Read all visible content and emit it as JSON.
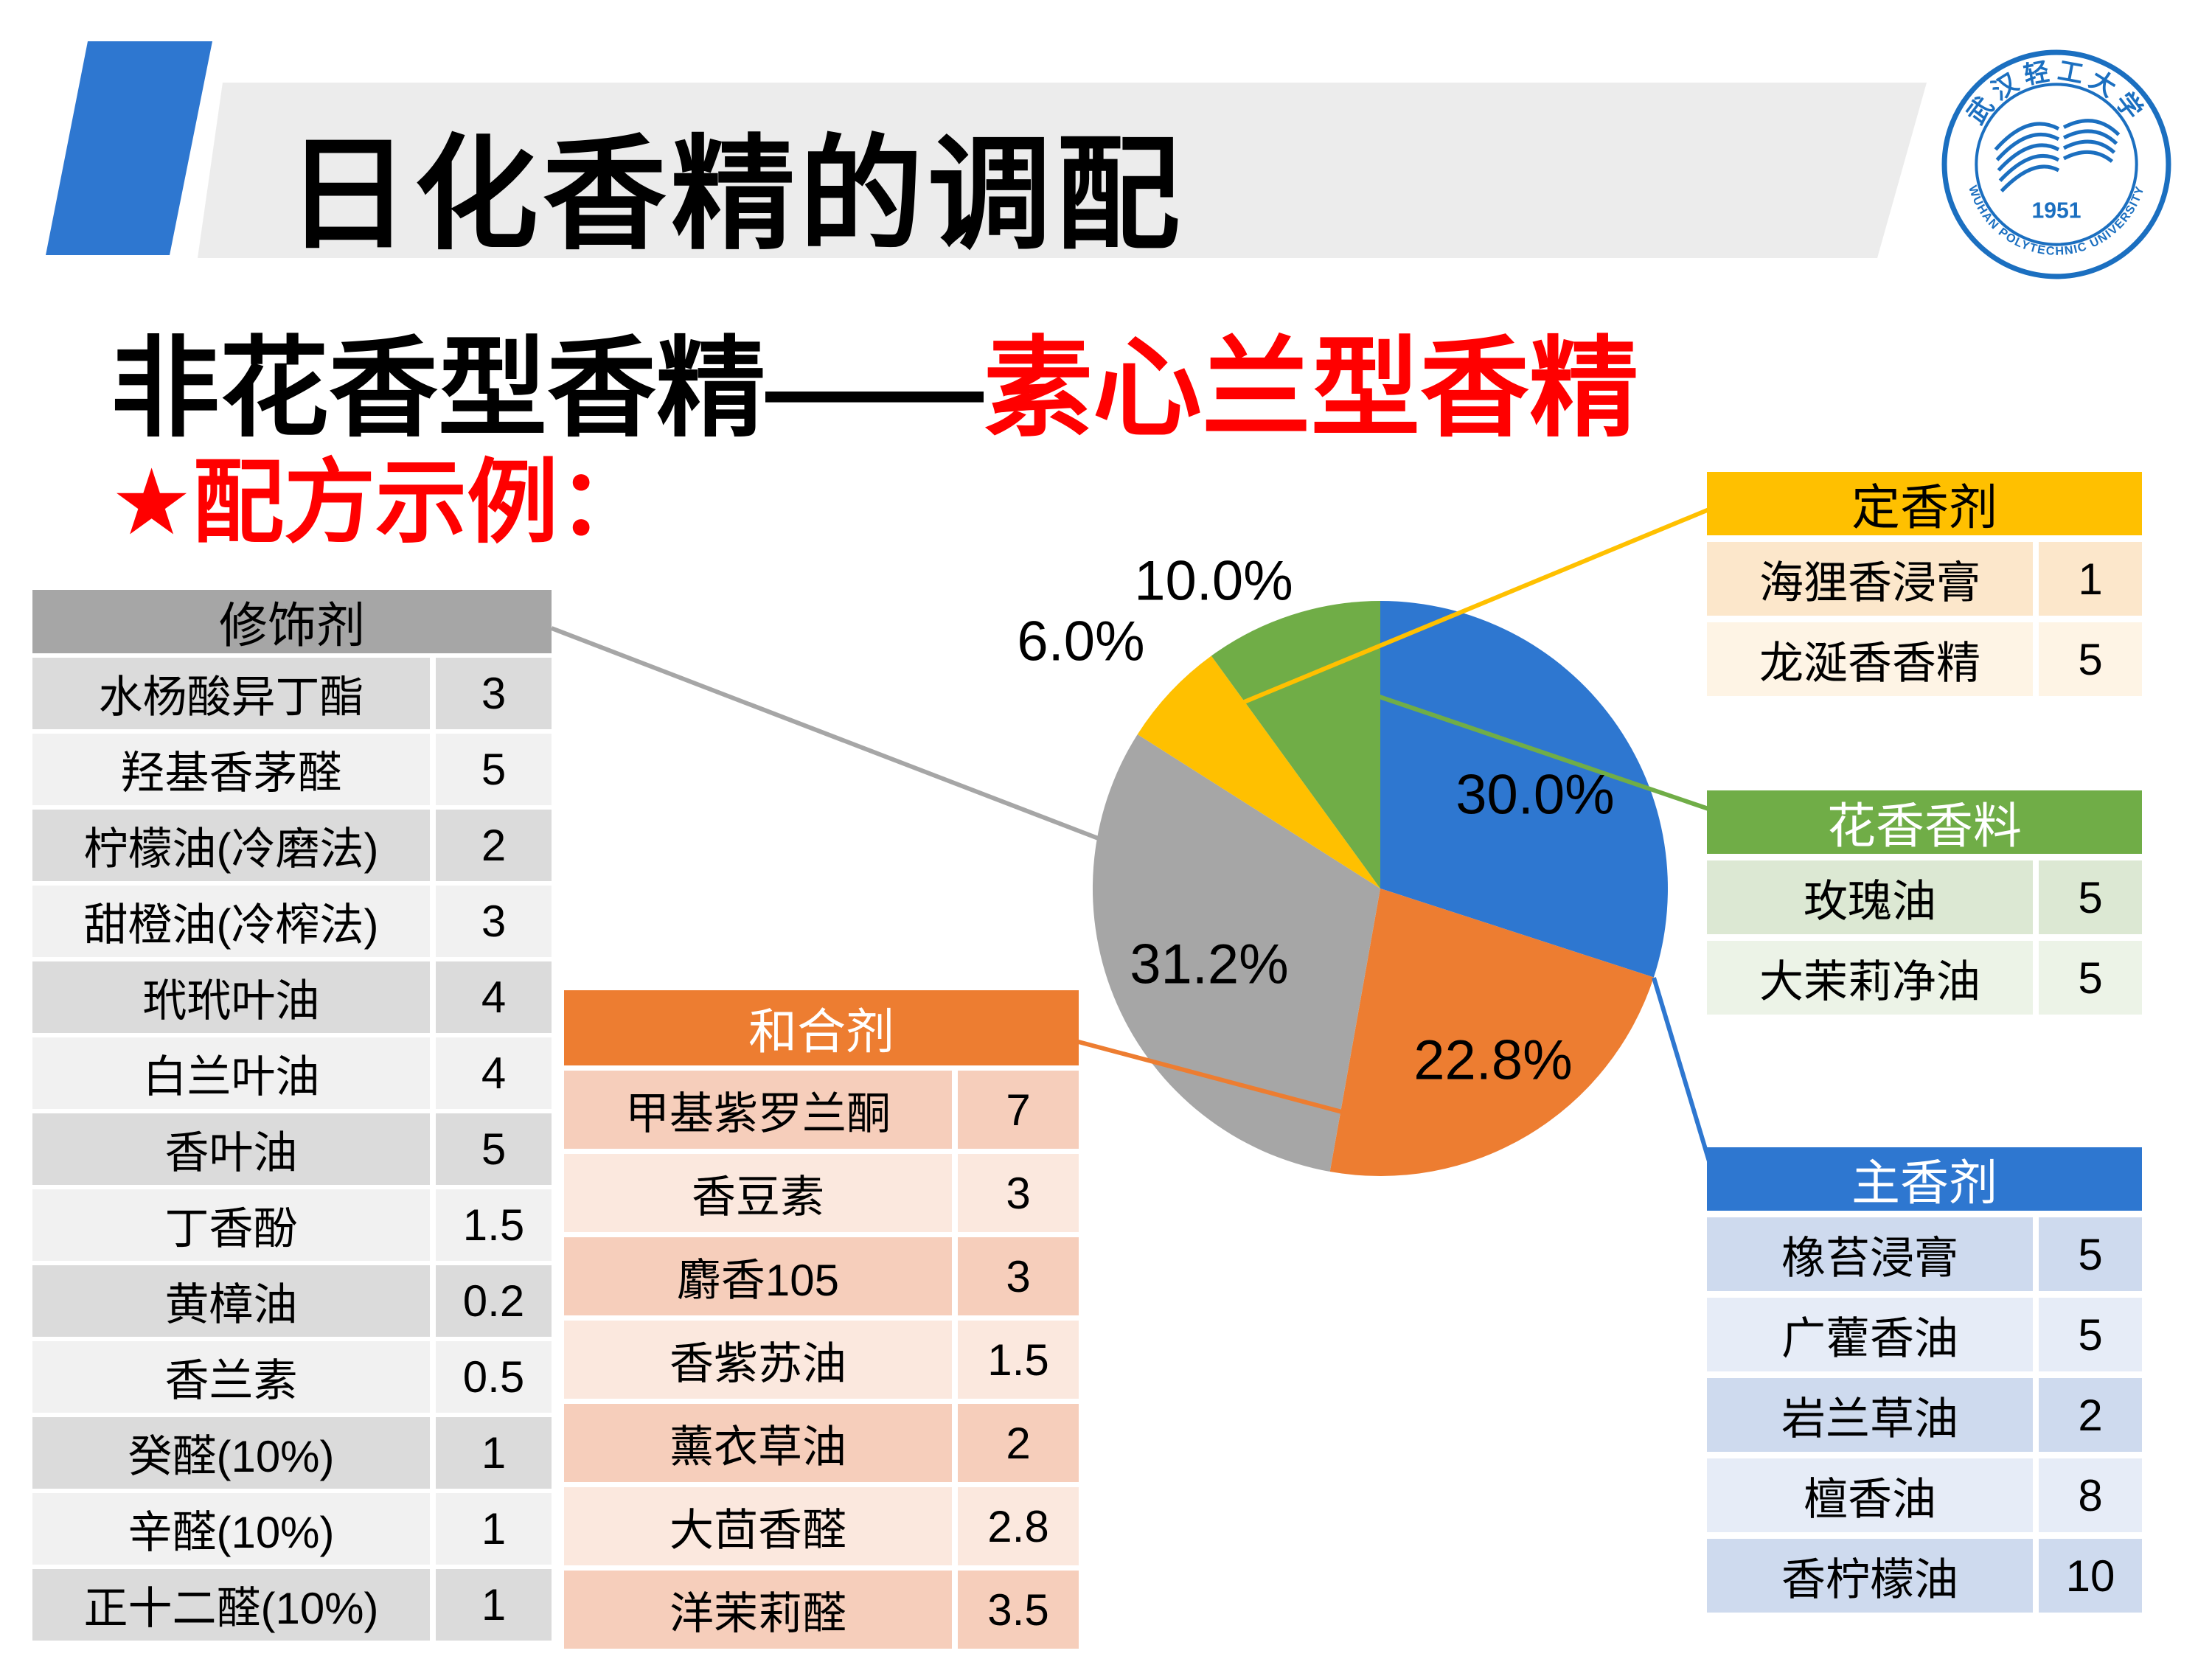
{
  "slide": {
    "title": "日化香精的调配",
    "subtitle_black": "非花香型香精——",
    "subtitle_red": "素心兰型香精",
    "recipe_label": "★配方示例："
  },
  "logo": {
    "top_text": "武汉轻工大学",
    "bottom_text": "WUHAN POLYTECHNIC UNIVERSITY",
    "year": "1951",
    "color": "#1B6FC0"
  },
  "tables": {
    "fixative": {
      "title": "定香剂",
      "header_color": "#FFC000",
      "rows": [
        [
          "海狸香浸膏",
          "1"
        ],
        [
          "龙涎香香精",
          "5"
        ]
      ]
    },
    "floral": {
      "title": "花香香料",
      "header_color": "#70AD47",
      "rows": [
        [
          "玫瑰油",
          "5"
        ],
        [
          "大茉莉净油",
          "5"
        ]
      ]
    },
    "main": {
      "title": "主香剂",
      "header_color": "#2E77D0",
      "rows": [
        [
          "橡苔浸膏",
          "5"
        ],
        [
          "广藿香油",
          "5"
        ],
        [
          "岩兰草油",
          "2"
        ],
        [
          "檀香油",
          "8"
        ],
        [
          "香柠檬油",
          "10"
        ]
      ]
    },
    "blender": {
      "title": "和合剂",
      "header_color": "#ED7D31",
      "rows": [
        [
          "甲基紫罗兰酮",
          "7"
        ],
        [
          "香豆素",
          "3"
        ],
        [
          "麝香105",
          "3"
        ],
        [
          "香紫苏油",
          "1.5"
        ],
        [
          "薰衣草油",
          "2"
        ],
        [
          "大茴香醛",
          "2.8"
        ],
        [
          "洋茉莉醛",
          "3.5"
        ]
      ]
    },
    "modifier": {
      "title": "修饰剂",
      "header_color": "#A6A6A6",
      "rows": [
        [
          "水杨酸异丁酯",
          "3"
        ],
        [
          "羟基香茅醛",
          "5"
        ],
        [
          "柠檬油(冷磨法)",
          "2"
        ],
        [
          "甜橙油(冷榨法)",
          "3"
        ],
        [
          "玳玳叶油",
          "4"
        ],
        [
          "白兰叶油",
          "4"
        ],
        [
          "香叶油",
          "5"
        ],
        [
          "丁香酚",
          "1.5"
        ],
        [
          "黄樟油",
          "0.2"
        ],
        [
          "香兰素",
          "0.5"
        ],
        [
          "癸醛(10%)",
          "1"
        ],
        [
          "辛醛(10%)",
          "1"
        ],
        [
          "正十二醛(10%)",
          "1"
        ]
      ]
    }
  },
  "chart_data": {
    "type": "pie",
    "title": "",
    "categories": [
      "主香剂",
      "和合剂",
      "修饰剂",
      "定香剂",
      "花香香料"
    ],
    "values": [
      30.0,
      22.8,
      31.2,
      6.0,
      10.0
    ],
    "labels": [
      "30.0%",
      "22.8%",
      "31.2%",
      "6.0%",
      "10.0%"
    ],
    "colors": [
      "#2E77D0",
      "#ED7D31",
      "#A6A6A6",
      "#FFC000",
      "#70AD47"
    ],
    "start_angle_deg": 0,
    "direction": "clockwise",
    "legend": "none"
  }
}
